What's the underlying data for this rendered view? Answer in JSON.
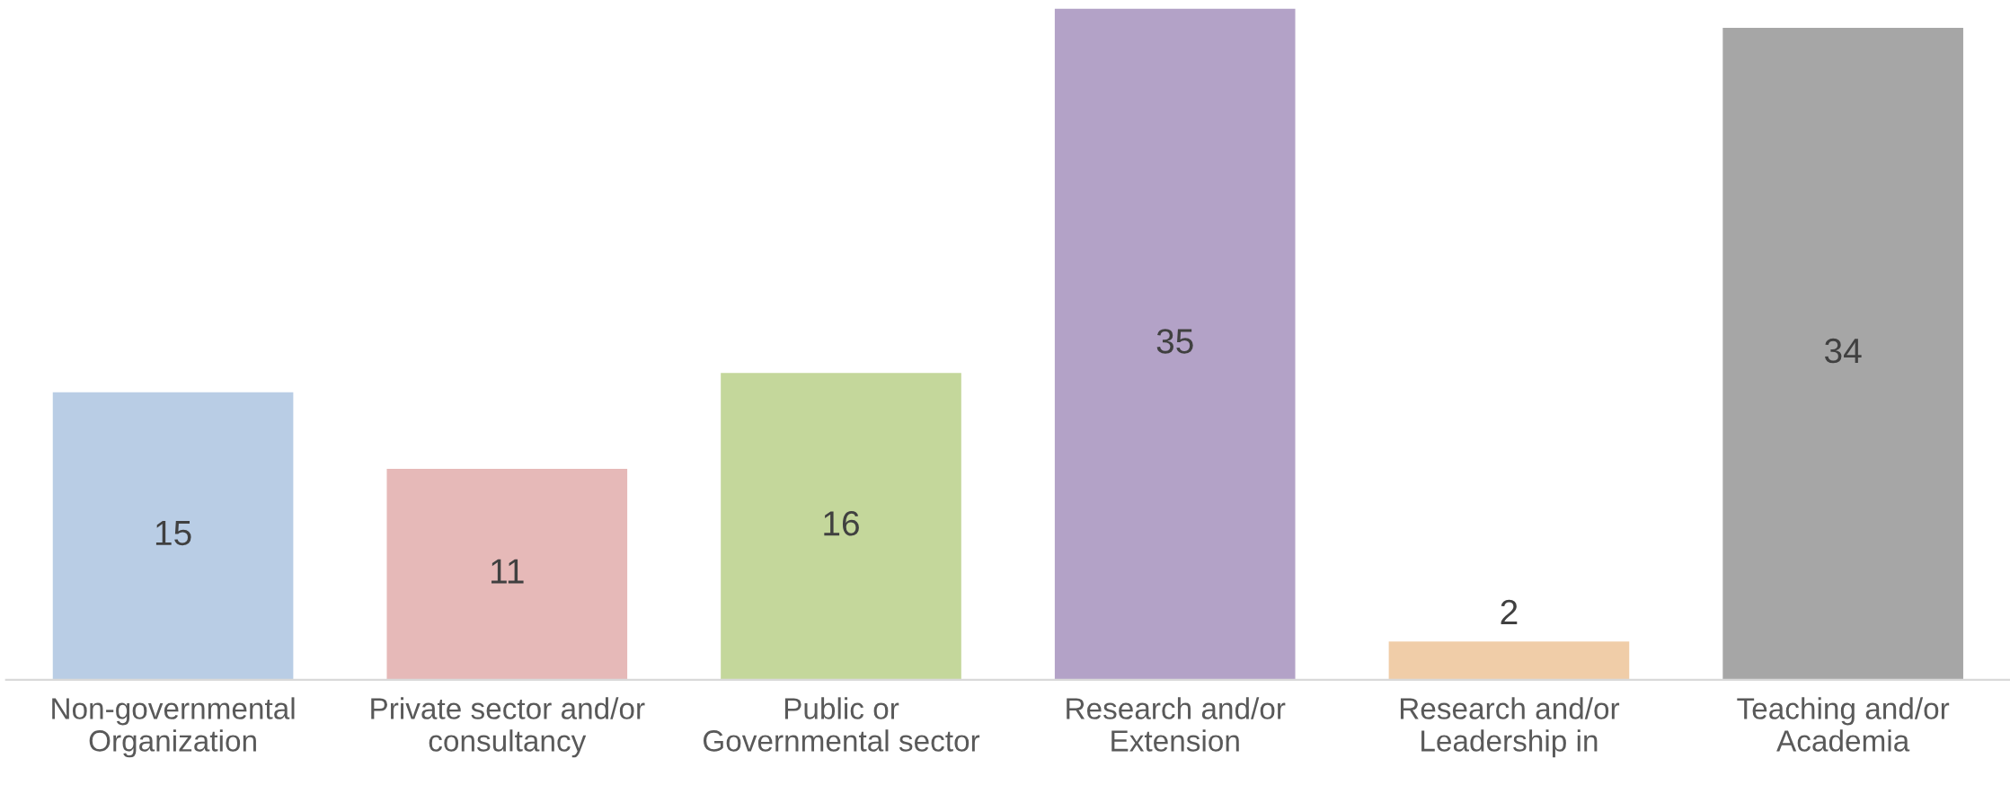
{
  "chart_data": {
    "type": "bar",
    "categories": [
      "Non-governmental\nOrganization",
      "Private sector and/or\nconsultancy",
      "Public or\nGovernmental sector",
      "Research and/or\nExtension",
      "Research and/or\nLeadership in",
      "Teaching and/or\nAcademia"
    ],
    "values": [
      15,
      11,
      16,
      35,
      2,
      34
    ],
    "colors": [
      "#b9cde5",
      "#e6b9b8",
      "#c4d79b",
      "#b3a2c7",
      "#f0cda8",
      "#a6a6a6"
    ],
    "data_labels": true,
    "grid": false,
    "legend": false
  }
}
